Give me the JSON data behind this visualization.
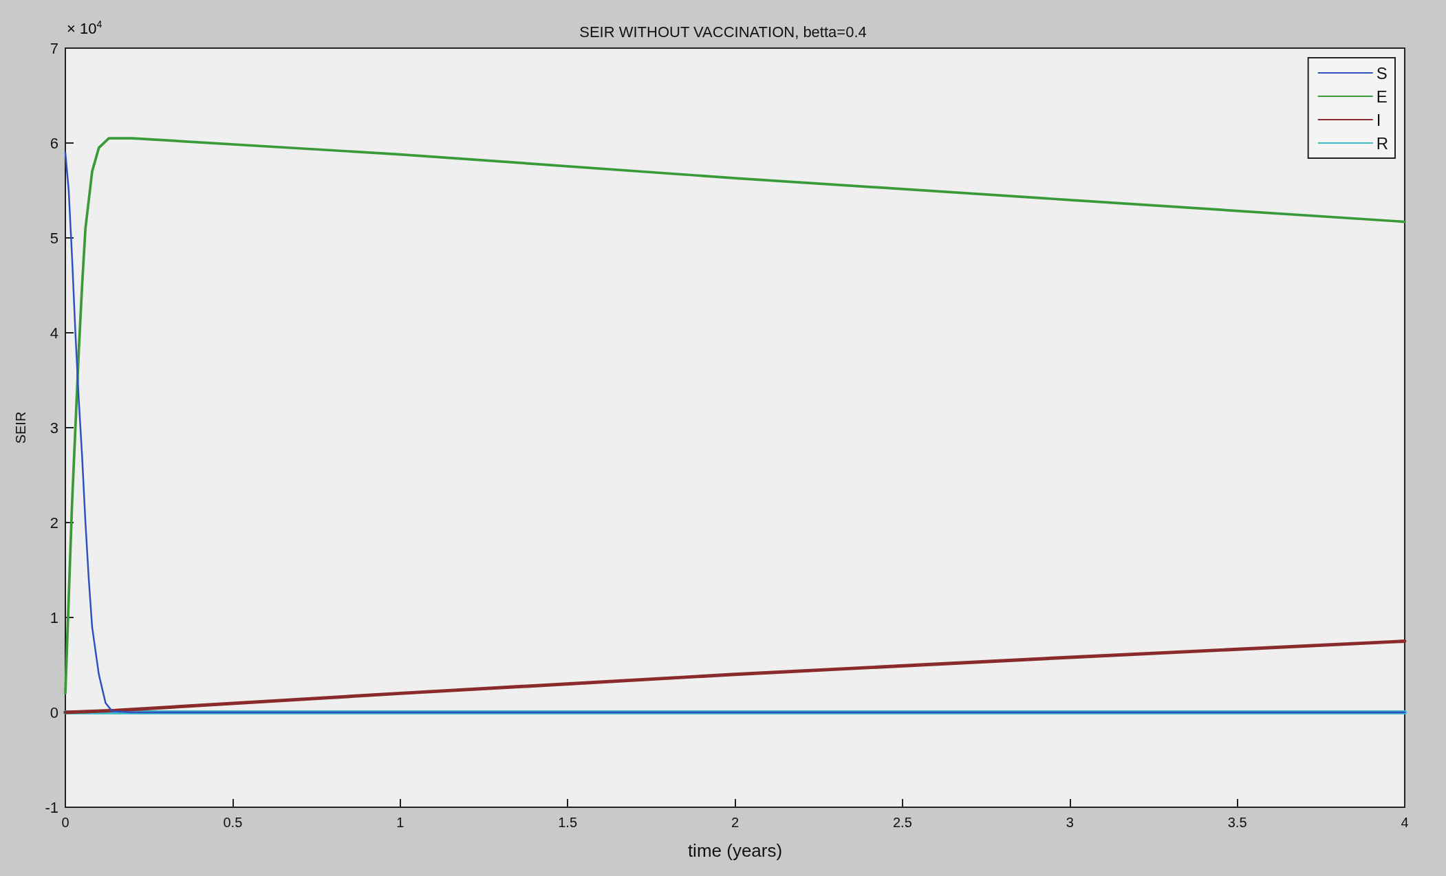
{
  "chart_data": {
    "type": "line",
    "title": "SEIR WITHOUT VACCINATION, betta=0.4",
    "xlabel": "time (years)",
    "ylabel": "SEIR",
    "annotations": [
      "× 10$^{4}$"
    ],
    "series": [
      {
        "name": "S",
        "color": "#3050c0",
        "x": [
          0,
          0.01,
          0.02,
          0.03,
          0.04,
          0.05,
          0.06,
          0.07,
          0.08,
          0.1,
          0.12,
          0.14,
          0.2,
          4
        ],
        "values": [
          5.9,
          5.5,
          4.8,
          4.0,
          3.3,
          2.7,
          2.0,
          1.4,
          0.9,
          0.4,
          0.1,
          0.01,
          0,
          0
        ]
      },
      {
        "name": "E",
        "color": "#3a9a3a",
        "x": [
          0,
          0.01,
          0.02,
          0.03,
          0.04,
          0.05,
          0.06,
          0.08,
          0.1,
          0.13,
          0.2,
          1,
          2,
          3,
          4
        ],
        "values": [
          0.2,
          1.2,
          2.2,
          3.0,
          3.8,
          4.5,
          5.1,
          5.7,
          5.95,
          6.05,
          6.05,
          5.88,
          5.63,
          5.4,
          5.17
        ]
      },
      {
        "name": "I",
        "color": "#8b2a2a",
        "x": [
          0,
          0.15,
          1,
          2,
          3,
          4
        ],
        "values": [
          0,
          0.02,
          0.2,
          0.4,
          0.58,
          0.75
        ]
      },
      {
        "name": "R",
        "color": "#40b8c8",
        "x": [
          0,
          4
        ],
        "values": [
          0,
          0
        ]
      }
    ],
    "xlim": [
      0,
      4
    ],
    "xticks": [
      0,
      0.5,
      1,
      1.5,
      2,
      2.5,
      3,
      3.5,
      4
    ],
    "ylim": [
      -1,
      7
    ],
    "yticks": [
      -1,
      0,
      1,
      2,
      3,
      4,
      5,
      6,
      7
    ],
    "legend": "top right",
    "grid": false,
    "marker": "none",
    "line_style": "solid"
  }
}
